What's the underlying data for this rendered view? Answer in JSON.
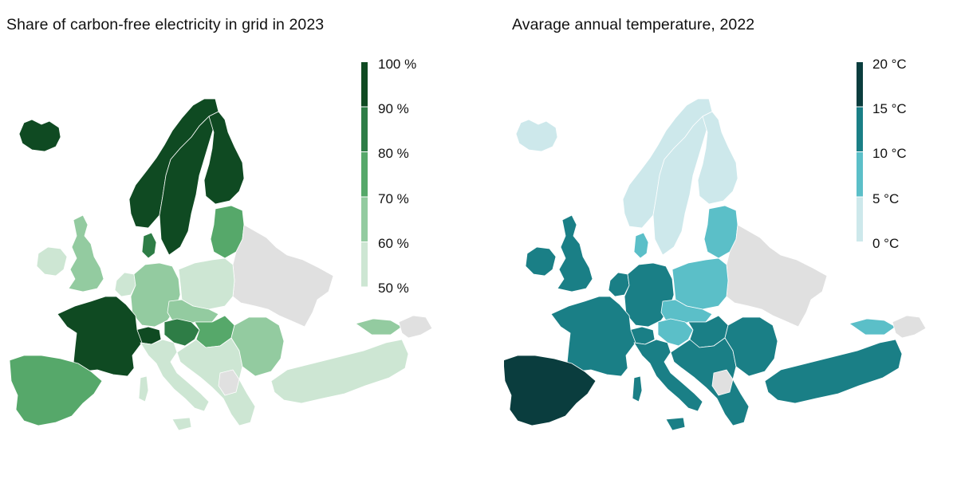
{
  "maps": [
    {
      "title": "Share of carbon-free electricity in grid in 2023",
      "legend": {
        "labels": [
          "100 %",
          "90 %",
          "80 %",
          "70 %",
          "60 %",
          "50 %"
        ],
        "colors": [
          "#0f4a22",
          "#2e7d46",
          "#56a86a",
          "#93cba0",
          "#cde6d3"
        ]
      },
      "no_data_color": "#e0e0e0",
      "region_colors": {
        "iceland": "#0f4a22",
        "ireland": "#cde6d3",
        "great_britain": "#93cba0",
        "norway": "#0f4a22",
        "sweden": "#0f4a22",
        "finland": "#0f4a22",
        "denmark": "#2e7d46",
        "baltics": "#56a86a",
        "east_no_data": "#e0e0e0",
        "benelux": "#cde6d3",
        "germany": "#93cba0",
        "poland": "#cde6d3",
        "czechia": "#93cba0",
        "austria": "#2e7d46",
        "hungary": "#56a86a",
        "france": "#0f4a22",
        "switzerland": "#0f4a22",
        "iberia": "#56a86a",
        "italy": "#cde6d3",
        "romania_bulgaria": "#93cba0",
        "balkans": "#cde6d3",
        "balkans_no_data": "#e0e0e0",
        "turkey": "#cde6d3",
        "georgia": "#93cba0",
        "caucasus_no_data": "#e0e0e0",
        "islands": "#cde6d3"
      }
    },
    {
      "title": "Avarage annual temperature, 2022",
      "legend": {
        "labels": [
          "20 °C",
          "15 °C",
          "10 °C",
          "5 °C",
          "0 °C"
        ],
        "colors": [
          "#0a3d3e",
          "#1a7f86",
          "#5bbfc8",
          "#cde8eb"
        ]
      },
      "no_data_color": "#e0e0e0",
      "region_colors": {
        "iceland": "#cde8eb",
        "ireland": "#1a7f86",
        "great_britain": "#1a7f86",
        "norway": "#cde8eb",
        "sweden": "#cde8eb",
        "finland": "#cde8eb",
        "denmark": "#5bbfc8",
        "baltics": "#5bbfc8",
        "east_no_data": "#e0e0e0",
        "benelux": "#1a7f86",
        "germany": "#1a7f86",
        "poland": "#5bbfc8",
        "czechia": "#5bbfc8",
        "austria": "#5bbfc8",
        "hungary": "#1a7f86",
        "france": "#1a7f86",
        "switzerland": "#1a7f86",
        "iberia": "#0a3d3e",
        "italy": "#1a7f86",
        "romania_bulgaria": "#1a7f86",
        "balkans": "#1a7f86",
        "balkans_no_data": "#e0e0e0",
        "turkey": "#1a7f86",
        "georgia": "#5bbfc8",
        "caucasus_no_data": "#e0e0e0",
        "islands": "#1a7f86"
      }
    }
  ]
}
